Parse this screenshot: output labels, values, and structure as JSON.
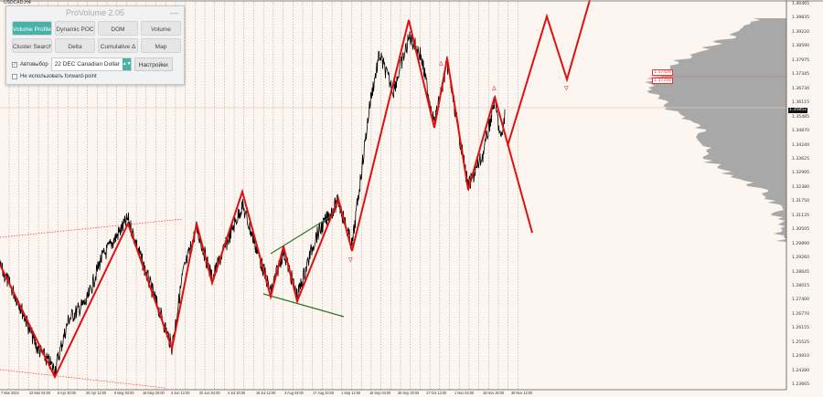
{
  "symbol": "USDCAD,H4",
  "panel": {
    "title": "ProVolume 2.05",
    "minimize": "—",
    "buttons": [
      {
        "label": "Volume Profile",
        "active": true
      },
      {
        "label": "Dynamic POC"
      },
      {
        "label": "DOM"
      },
      {
        "label": "Volume"
      },
      {
        "label": "Cluster Search"
      },
      {
        "label": "Delta"
      },
      {
        "label": "Cumulative Δ"
      },
      {
        "label": "Map"
      }
    ],
    "auto_label": "Автовыбор",
    "auto_checked": true,
    "instrument": "22 DEC Canadian Dollar",
    "settings_label": "Настройки",
    "forward_label": "Не использовать forward-point",
    "forward_checked": false,
    "accent": "#47b3a8"
  },
  "price_axis": [
    "1.40465",
    "1.39835",
    "1.39220",
    "1.38590",
    "1.37975",
    "1.37345",
    "1.36730",
    "1.36115",
    "1.35485",
    "1.34870",
    "1.34240",
    "1.33625",
    "1.32995",
    "1.32380",
    "1.31750",
    "1.31135",
    "1.30505",
    "1.29890",
    "1.29260",
    "1.28645",
    "1.28015",
    "1.27400",
    "1.26770",
    "1.26155",
    "1.25525",
    "1.24910",
    "1.24280",
    "1.23665"
  ],
  "current_price": "1.35852",
  "level_labels": [
    "1.37426",
    "1.37256"
  ],
  "time_axis": [
    "7 Mar 2022",
    "22 Mar 04:00",
    "5 Apr 20:00",
    "20 Apr 12:00",
    "5 May 04:00",
    "19 May 20:00",
    "3 Jun 12:00",
    "20 Jun 04:00",
    "4 Jul 20:00",
    "19 Jul 12:00",
    "3 Aug 04:00",
    "17 Aug 20:00",
    "1 Sep 12:00",
    "16 Sep 04:00",
    "30 Sep 20:00",
    "17 Oct 12:00",
    "1 Nov 04:00",
    "15 Nov 20:00",
    "30 Nov 12:00"
  ],
  "colors": {
    "background": "#fdf5ef",
    "zigzag": "#e01010",
    "channel": "#2a7a2a",
    "profile": "#a8a8a8",
    "poc": "#e06060"
  }
}
